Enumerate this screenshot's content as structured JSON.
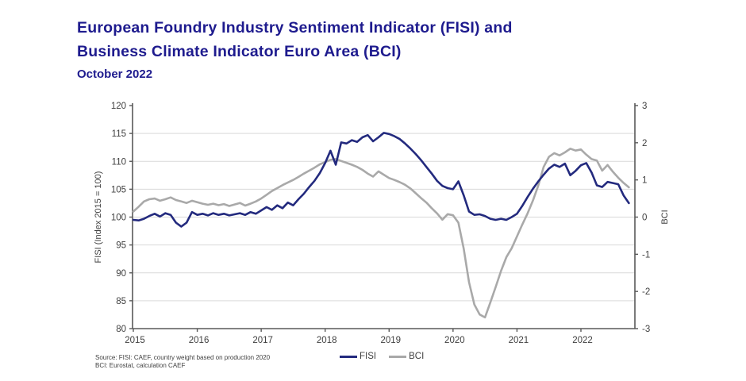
{
  "title": {
    "line1": "European Foundry Industry Sentiment Indicator (FISI) and",
    "line2": "Business Climate Indicator Euro Area (BCI)",
    "subtitle": "October 2022"
  },
  "source": {
    "line1": "Source: FISI: CAEF, country weight based on production 2020",
    "line2": "BCI: Eurostat, calculation CAEF"
  },
  "legend": [
    {
      "label": "FISI",
      "color": "#232a7e"
    },
    {
      "label": "BCI",
      "color": "#a9a9a9"
    }
  ],
  "colors": {
    "title_navy": "#1e1b8e",
    "fisi_line": "#232a7e",
    "bci_line": "#a9a9a9",
    "axis": "#595959",
    "grid": "#d9d9d9",
    "tick_text": "#404040"
  },
  "chart_data": {
    "type": "line",
    "title": "European Foundry Industry Sentiment Indicator (FISI) and Business Climate Indicator Euro Area (BCI), October 2022",
    "x_unit": "month",
    "x_start": "2015-01",
    "x_end": "2022-10",
    "x_tick_labels": [
      "2015",
      "2016",
      "2017",
      "2018",
      "2019",
      "2020",
      "2021",
      "2022"
    ],
    "grid": "horizontal",
    "legend_position": "bottom",
    "left_axis": {
      "label": "FISI (Index 2015 = 100)",
      "min": 80,
      "max": 120,
      "ticks": [
        120,
        115,
        110,
        105,
        100,
        95,
        90,
        85,
        80
      ]
    },
    "right_axis": {
      "label": "BCI",
      "min": -3,
      "max": 3,
      "ticks": [
        3,
        2,
        1,
        0,
        -1,
        -2,
        -3
      ]
    },
    "series": [
      {
        "name": "FISI",
        "axis": "left",
        "color": "#232a7e",
        "values": [
          99.5,
          99.4,
          99.7,
          100.2,
          100.6,
          100.1,
          100.7,
          100.4,
          99.0,
          98.3,
          99.0,
          100.9,
          100.4,
          100.6,
          100.3,
          100.7,
          100.4,
          100.6,
          100.3,
          100.5,
          100.7,
          100.4,
          100.9,
          100.6,
          101.2,
          101.8,
          101.3,
          102.1,
          101.6,
          102.6,
          102.1,
          103.2,
          104.2,
          105.4,
          106.5,
          107.9,
          109.7,
          111.9,
          109.4,
          113.4,
          113.2,
          113.8,
          113.5,
          114.3,
          114.7,
          113.6,
          114.3,
          115.1,
          114.9,
          114.5,
          114.0,
          113.2,
          112.3,
          111.3,
          110.2,
          109.0,
          107.8,
          106.5,
          105.6,
          105.2,
          105.0,
          106.4,
          103.9,
          101.0,
          100.4,
          100.5,
          100.2,
          99.7,
          99.5,
          99.7,
          99.5,
          100.0,
          100.6,
          102.0,
          103.6,
          105.1,
          106.4,
          107.6,
          108.7,
          109.4,
          109.0,
          109.6,
          107.5,
          108.3,
          109.3,
          109.7,
          108.0,
          105.7,
          105.4,
          106.3,
          106.1,
          105.9,
          103.9,
          102.5
        ]
      },
      {
        "name": "BCI",
        "axis": "right",
        "color": "#a9a9a9",
        "values": [
          0.15,
          0.28,
          0.42,
          0.48,
          0.5,
          0.44,
          0.48,
          0.53,
          0.46,
          0.42,
          0.38,
          0.44,
          0.4,
          0.36,
          0.33,
          0.36,
          0.32,
          0.35,
          0.3,
          0.34,
          0.38,
          0.31,
          0.36,
          0.42,
          0.5,
          0.6,
          0.7,
          0.78,
          0.86,
          0.93,
          1.0,
          1.08,
          1.17,
          1.25,
          1.33,
          1.42,
          1.48,
          1.54,
          1.56,
          1.51,
          1.46,
          1.41,
          1.35,
          1.27,
          1.17,
          1.09,
          1.23,
          1.14,
          1.05,
          1.0,
          0.94,
          0.87,
          0.77,
          0.64,
          0.51,
          0.39,
          0.24,
          0.1,
          -0.07,
          0.08,
          0.05,
          -0.15,
          -0.85,
          -1.75,
          -2.35,
          -2.62,
          -2.7,
          -2.3,
          -1.88,
          -1.45,
          -1.08,
          -0.84,
          -0.52,
          -0.2,
          0.1,
          0.45,
          0.85,
          1.35,
          1.62,
          1.72,
          1.66,
          1.74,
          1.84,
          1.79,
          1.82,
          1.68,
          1.56,
          1.52,
          1.25,
          1.4,
          1.22,
          1.06,
          0.92,
          0.8
        ]
      }
    ]
  }
}
